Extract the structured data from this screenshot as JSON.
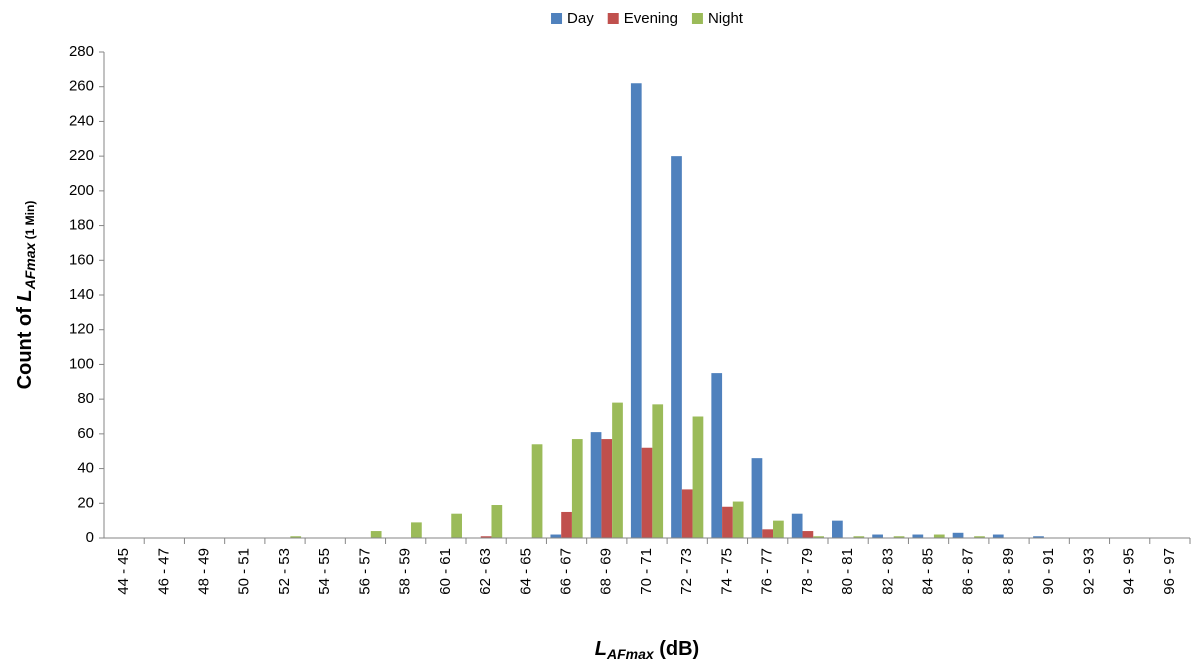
{
  "chart_data": {
    "type": "bar",
    "categories": [
      "44 - 45",
      "46 - 47",
      "48 - 49",
      "50 - 51",
      "52 - 53",
      "54 - 55",
      "56 - 57",
      "58 - 59",
      "60 - 61",
      "62 - 63",
      "64 - 65",
      "66 - 67",
      "68 - 69",
      "70 - 71",
      "72 - 73",
      "74 - 75",
      "76 - 77",
      "78 - 79",
      "80 - 81",
      "82 - 83",
      "84 - 85",
      "86 - 87",
      "88 - 89",
      "90 - 91",
      "92 - 93",
      "94 - 95",
      "96 - 97"
    ],
    "series": [
      {
        "name": "Day",
        "color": "#4f81bd",
        "values": [
          0,
          0,
          0,
          0,
          0,
          0,
          0,
          0,
          0,
          0,
          0,
          2,
          61,
          262,
          220,
          95,
          46,
          14,
          10,
          2,
          2,
          3,
          2,
          1,
          0,
          0,
          0
        ]
      },
      {
        "name": "Evening",
        "color": "#c0504d",
        "values": [
          0,
          0,
          0,
          0,
          0,
          0,
          0,
          0,
          0,
          1,
          0,
          15,
          57,
          52,
          28,
          18,
          5,
          4,
          0,
          0,
          0,
          0,
          0,
          0,
          0,
          0,
          0
        ]
      },
      {
        "name": "Night",
        "color": "#9bbb59",
        "values": [
          0,
          0,
          0,
          0,
          1,
          0,
          4,
          9,
          14,
          19,
          54,
          57,
          78,
          77,
          70,
          21,
          10,
          1,
          1,
          1,
          2,
          1,
          0,
          0,
          0,
          0,
          0
        ]
      }
    ],
    "ylim": [
      0,
      280
    ],
    "yticks": [
      0,
      20,
      40,
      60,
      80,
      100,
      120,
      140,
      160,
      180,
      200,
      220,
      240,
      260,
      280
    ],
    "ylabel": {
      "prefix": "Count of ",
      "symbol": "L",
      "subscript": "AFmax",
      "suffix": " (1 Min)"
    },
    "xlabel": {
      "symbol": "L",
      "subscript": "AFmax",
      "suffix": " (dB)"
    },
    "legend": "top",
    "grid": false
  }
}
